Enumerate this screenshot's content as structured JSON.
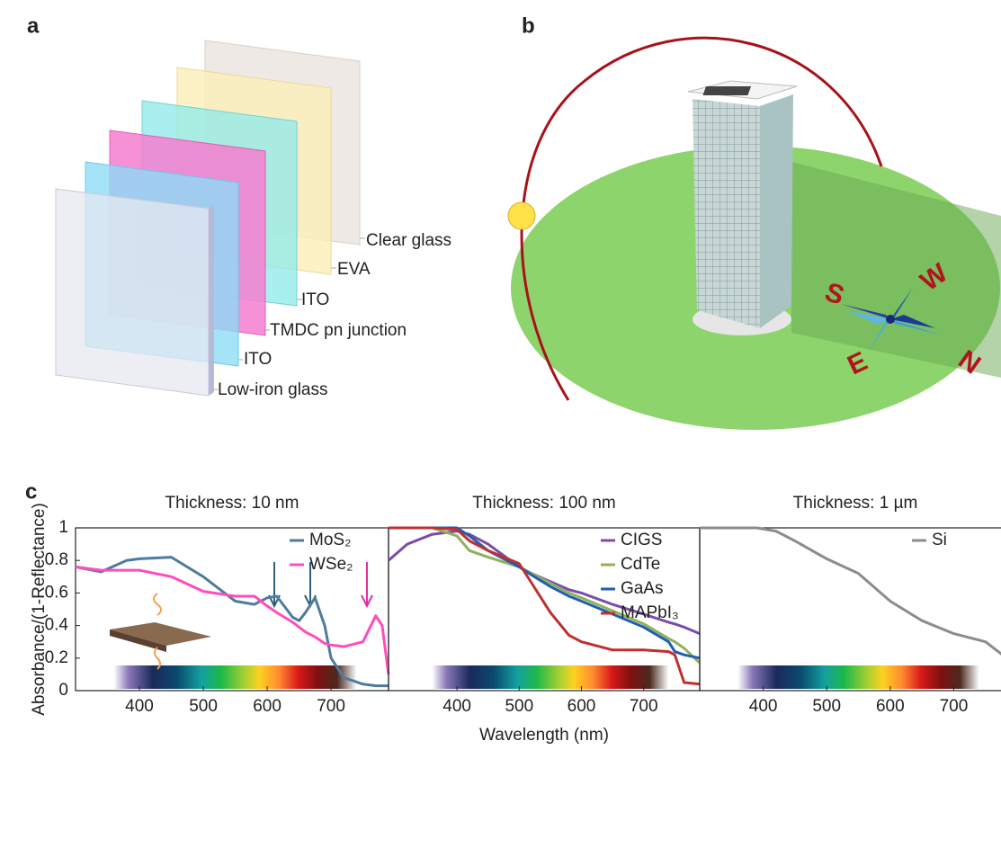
{
  "panels": {
    "a": "a",
    "b": "b",
    "c": "c"
  },
  "panel_a": {
    "layers": [
      "Clear glass",
      "EVA",
      "ITO",
      "TMDC pn junction",
      "ITO",
      "Low-iron glass"
    ]
  },
  "panel_b": {
    "compass": [
      "S",
      "W",
      "N",
      "E"
    ]
  },
  "chart_data": [
    {
      "type": "line",
      "title": "Thickness: 10 nm",
      "ylabel": "Absorbance/(1-Reflectance)",
      "x": [
        300,
        340,
        380,
        400,
        450,
        500,
        550,
        580,
        600,
        615,
        640,
        650,
        660,
        675,
        690,
        700,
        720,
        750,
        770,
        780,
        790
      ],
      "series": [
        {
          "name": "MoS₂",
          "color": "#4d7c9e",
          "values": [
            0.76,
            0.73,
            0.8,
            0.81,
            0.82,
            0.7,
            0.55,
            0.53,
            0.57,
            0.58,
            0.45,
            0.43,
            0.48,
            0.57,
            0.4,
            0.2,
            0.08,
            0.04,
            0.03,
            0.03,
            0.03
          ]
        },
        {
          "name": "WSe₂",
          "color": "#ff4cc0",
          "values": [
            0.76,
            0.74,
            0.74,
            0.74,
            0.7,
            0.61,
            0.58,
            0.58,
            0.52,
            0.48,
            0.42,
            0.39,
            0.36,
            0.33,
            0.29,
            0.28,
            0.27,
            0.3,
            0.46,
            0.4,
            0.1
          ]
        }
      ],
      "xlim": [
        300,
        790
      ],
      "ylim": [
        0,
        1
      ],
      "xticks": [
        400,
        500,
        600,
        700
      ],
      "yticks": [
        0,
        0.2,
        0.4,
        0.6,
        0.8,
        1
      ]
    },
    {
      "type": "line",
      "title": "Thickness: 100 nm",
      "xlabel": "Wavelength (nm)",
      "x": [
        290,
        320,
        360,
        400,
        420,
        450,
        500,
        520,
        550,
        580,
        600,
        650,
        700,
        740,
        750,
        765,
        790
      ],
      "series": [
        {
          "name": "CIGS",
          "color": "#7b4bab",
          "values": [
            0.8,
            0.9,
            0.96,
            0.98,
            0.96,
            0.9,
            0.76,
            0.72,
            0.67,
            0.62,
            0.6,
            0.53,
            0.47,
            0.42,
            0.41,
            0.39,
            0.35
          ]
        },
        {
          "name": "CdTe",
          "color": "#8fb15b",
          "values": [
            1.0,
            1.0,
            1.0,
            0.95,
            0.86,
            0.82,
            0.76,
            0.72,
            0.66,
            0.6,
            0.57,
            0.49,
            0.41,
            0.32,
            0.3,
            0.26,
            0.17
          ]
        },
        {
          "name": "GaAs",
          "color": "#1f5eb2",
          "values": [
            1.0,
            1.0,
            1.0,
            1.0,
            0.95,
            0.86,
            0.76,
            0.71,
            0.64,
            0.58,
            0.55,
            0.47,
            0.39,
            0.3,
            0.24,
            0.22,
            0.2
          ]
        },
        {
          "name": "MAPbI₃",
          "color": "#c0302e",
          "values": [
            1.0,
            1.0,
            1.0,
            0.99,
            0.92,
            0.86,
            0.78,
            0.66,
            0.48,
            0.34,
            0.3,
            0.25,
            0.25,
            0.24,
            0.22,
            0.05,
            0.04
          ]
        }
      ],
      "xlim": [
        290,
        790
      ],
      "ylim": [
        0,
        1
      ],
      "xticks": [
        400,
        500,
        600,
        700
      ]
    },
    {
      "type": "line",
      "title": "Thickness: 1 µm",
      "x": [
        300,
        390,
        420,
        450,
        500,
        550,
        600,
        650,
        700,
        750,
        790
      ],
      "series": [
        {
          "name": "Si",
          "color": "#8c8c8c",
          "values": [
            1.0,
            1.0,
            0.98,
            0.92,
            0.81,
            0.72,
            0.55,
            0.43,
            0.35,
            0.3,
            0.18
          ]
        }
      ],
      "xlim": [
        300,
        790
      ],
      "ylim": [
        0,
        1
      ],
      "xticks": [
        400,
        500,
        600,
        700
      ]
    }
  ]
}
